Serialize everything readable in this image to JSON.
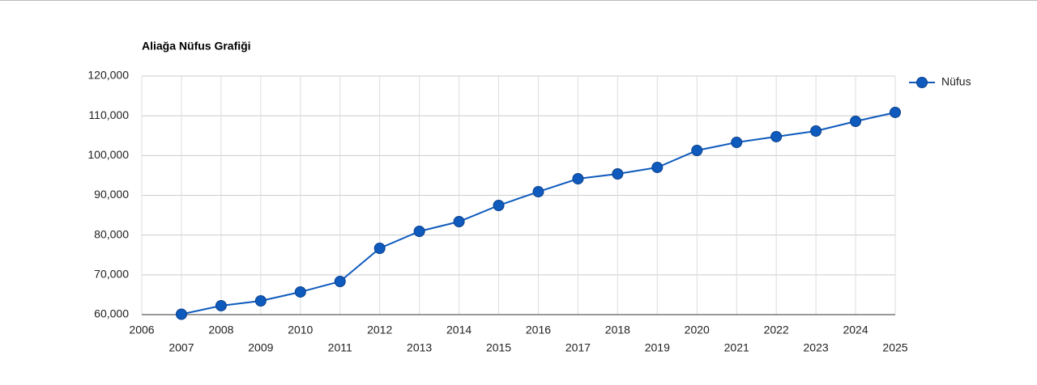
{
  "chart_data": {
    "type": "line",
    "title": "Aliağa Nüfus Grafiği",
    "x": [
      2007,
      2008,
      2009,
      2010,
      2011,
      2012,
      2013,
      2014,
      2015,
      2016,
      2017,
      2018,
      2019,
      2020,
      2021,
      2022,
      2023,
      2024,
      2025
    ],
    "series": [
      {
        "name": "Nüfus",
        "color": "#0f5bbd",
        "values": [
          60100,
          62240,
          63460,
          65700,
          68340,
          76680,
          80950,
          83390,
          87460,
          90910,
          94170,
          95390,
          97020,
          101290,
          103320,
          104750,
          106170,
          108610,
          110850
        ]
      }
    ],
    "xlim": [
      2006,
      2025
    ],
    "xticks": [
      2006,
      2007,
      2008,
      2009,
      2010,
      2011,
      2012,
      2013,
      2014,
      2015,
      2016,
      2017,
      2018,
      2019,
      2020,
      2021,
      2022,
      2023,
      2024,
      2025
    ],
    "ylim": [
      60000,
      120000
    ],
    "yticks": [
      {
        "value": 60000,
        "label": "60,000"
      },
      {
        "value": 70000,
        "label": "70,000"
      },
      {
        "value": 80000,
        "label": "80,000"
      },
      {
        "value": 90000,
        "label": "90,000"
      },
      {
        "value": 100000,
        "label": "100,000"
      },
      {
        "value": 110000,
        "label": "110,000"
      },
      {
        "value": 120000,
        "label": "120,000"
      }
    ],
    "grid": true,
    "legend": "right"
  }
}
